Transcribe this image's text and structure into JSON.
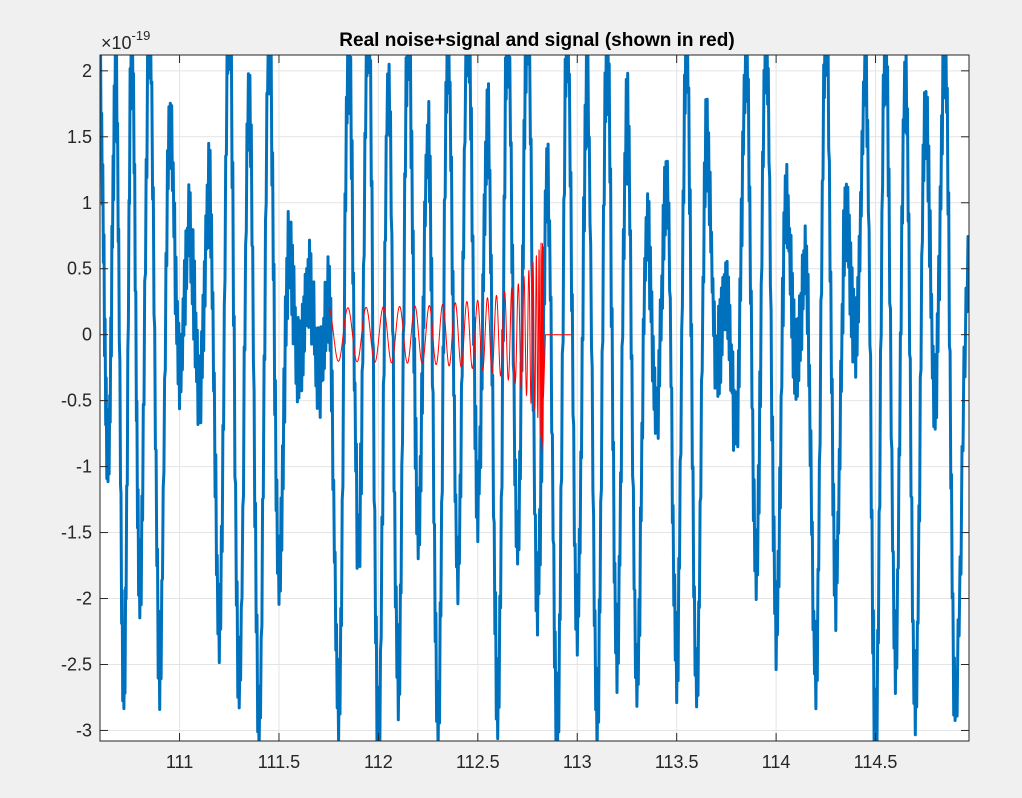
{
  "chart_data": {
    "type": "line",
    "title": "Real noise+signal and signal (shown in red)",
    "xlabel": "",
    "ylabel": "",
    "xlim": [
      110.6,
      114.97
    ],
    "ylim": [
      -3.08,
      2.12
    ],
    "y_exponent_label": {
      "base": "×10",
      "power": "-19"
    },
    "x_ticks": [
      111,
      111.5,
      112,
      112.5,
      113,
      113.5,
      114,
      114.5
    ],
    "x_tick_labels": [
      "111",
      "111.5",
      "112",
      "112.5",
      "113",
      "113.5",
      "114",
      "114.5"
    ],
    "y_ticks": [
      -3,
      -2.5,
      -2,
      -1.5,
      -1,
      -0.5,
      0,
      0.5,
      1,
      1.5,
      2
    ],
    "y_tick_labels": [
      "-3",
      "-2.5",
      "-2",
      "-1.5",
      "-1",
      "-0.5",
      "0",
      "0.5",
      "1",
      "1.5",
      "2"
    ],
    "grid": true,
    "series": [
      {
        "color": "#0072bd",
        "x": [
          110.6,
          110.64,
          110.68,
          110.72,
          110.76,
          110.8,
          110.85,
          110.9,
          110.95,
          111.0,
          111.05,
          111.1,
          111.15,
          111.2,
          111.25,
          111.3,
          111.35,
          111.4,
          111.45,
          111.5,
          111.55,
          111.6,
          111.65,
          111.7,
          111.75,
          111.8,
          111.85,
          111.9,
          111.95,
          112.0,
          112.05,
          112.1,
          112.15,
          112.2,
          112.25,
          112.3,
          112.35,
          112.4,
          112.45,
          112.5,
          112.55,
          112.6,
          112.65,
          112.7,
          112.75,
          112.8,
          112.85,
          112.9,
          112.95,
          113.0,
          113.05,
          113.1,
          113.15,
          113.2,
          113.25,
          113.3,
          113.35,
          113.4,
          113.45,
          113.5,
          113.55,
          113.6,
          113.65,
          113.7,
          113.75,
          113.8,
          113.85,
          113.9,
          113.95,
          114.0,
          114.05,
          114.1,
          114.15,
          114.2,
          114.25,
          114.3,
          114.35,
          114.4,
          114.45,
          114.5,
          114.55,
          114.6,
          114.65,
          114.7,
          114.75,
          114.8,
          114.85,
          114.9,
          114.97
        ],
        "y": [
          1.8,
          -0.9,
          1.9,
          -2.7,
          2.2,
          -1.9,
          2.3,
          -2.5,
          1.6,
          -0.3,
          0.8,
          -0.4,
          1.1,
          -2.2,
          2.4,
          -2.7,
          1.8,
          -3.0,
          2.2,
          -1.8,
          0.6,
          -0.2,
          0.4,
          -0.3,
          0.3,
          -2.8,
          2.2,
          -1.6,
          2.4,
          -3.1,
          1.9,
          -2.6,
          2.3,
          -1.4,
          1.5,
          -2.9,
          2.2,
          -1.8,
          2.4,
          -1.2,
          1.6,
          -2.8,
          2.3,
          -1.6,
          2.4,
          -2.0,
          1.2,
          -3.0,
          2.3,
          -2.2,
          1.9,
          -2.9,
          2.2,
          -2.4,
          1.7,
          -2.6,
          0.8,
          -0.6,
          1.2,
          -2.5,
          2.2,
          -2.7,
          1.5,
          -0.2,
          0.3,
          -0.7,
          2.1,
          -1.8,
          2.3,
          -2.2,
          1.0,
          -0.2,
          0.5,
          -2.6,
          2.4,
          -1.9,
          0.9,
          -0.1,
          2.0,
          -3.0,
          2.3,
          -2.4,
          1.9,
          -2.8,
          1.7,
          -0.5,
          2.2,
          -2.8,
          0.6
        ]
      },
      {
        "color": "#ff0000",
        "x": [
          111.75,
          112.0,
          112.25,
          112.5,
          112.6,
          112.7,
          112.75,
          112.8,
          112.83,
          112.84,
          112.97
        ],
        "y": [
          0.2,
          0.21,
          0.22,
          0.26,
          0.3,
          0.38,
          0.47,
          0.62,
          0.75,
          0.0,
          0.0
        ],
        "y_neg": [
          -0.2,
          -0.21,
          -0.22,
          -0.26,
          -0.3,
          -0.38,
          -0.47,
          -0.62,
          -0.98,
          0.0,
          0.0
        ]
      }
    ]
  }
}
